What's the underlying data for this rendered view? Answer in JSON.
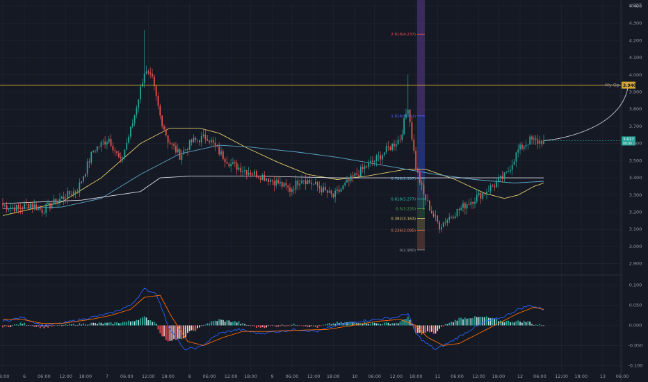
{
  "chart_data": {
    "type": "candlestick",
    "currency_label": "USDT",
    "colors": {
      "up": "#26a69a",
      "down": "#ef5350",
      "bg": "#151924",
      "grid": "#232733"
    },
    "main_pane": {
      "ylim": [
        2.85,
        4.42
      ],
      "y_ticks": [
        "4.400",
        "4.300",
        "4.200",
        "4.100",
        "4.000",
        "3.900",
        "3.800",
        "3.700",
        "3.600",
        "3.500",
        "3.400",
        "3.300",
        "3.200",
        "3.100",
        "3.000",
        "2.900"
      ],
      "y_tick_values": [
        4.4,
        4.3,
        4.2,
        4.1,
        4.0,
        3.9,
        3.8,
        3.7,
        3.6,
        3.5,
        3.4,
        3.3,
        3.2,
        3.1,
        3.0,
        2.9
      ],
      "candle_count": 276,
      "projection_end_index": 318,
      "key_closes": [
        [
          0,
          3.24
        ],
        [
          8,
          3.22
        ],
        [
          14,
          3.25
        ],
        [
          20,
          3.21
        ],
        [
          28,
          3.27
        ],
        [
          38,
          3.33
        ],
        [
          46,
          3.56
        ],
        [
          54,
          3.63
        ],
        [
          60,
          3.49
        ],
        [
          66,
          3.72
        ],
        [
          72,
          4.02
        ],
        [
          76,
          3.97
        ],
        [
          80,
          3.76
        ],
        [
          84,
          3.62
        ],
        [
          90,
          3.53
        ],
        [
          96,
          3.61
        ],
        [
          104,
          3.64
        ],
        [
          110,
          3.55
        ],
        [
          116,
          3.48
        ],
        [
          124,
          3.44
        ],
        [
          132,
          3.41
        ],
        [
          140,
          3.37
        ],
        [
          146,
          3.33
        ],
        [
          152,
          3.4
        ],
        [
          160,
          3.35
        ],
        [
          168,
          3.29
        ],
        [
          176,
          3.38
        ],
        [
          184,
          3.46
        ],
        [
          190,
          3.51
        ],
        [
          196,
          3.57
        ],
        [
          202,
          3.63
        ],
        [
          206,
          3.82
        ],
        [
          210,
          3.46
        ],
        [
          214,
          3.3
        ],
        [
          218,
          3.2
        ],
        [
          222,
          3.12
        ],
        [
          228,
          3.18
        ],
        [
          236,
          3.25
        ],
        [
          244,
          3.31
        ],
        [
          250,
          3.36
        ],
        [
          256,
          3.42
        ],
        [
          262,
          3.56
        ],
        [
          268,
          3.62
        ],
        [
          272,
          3.61
        ],
        [
          275,
          3.617
        ]
      ],
      "ma_series": [
        {
          "color": "#e6cf6b",
          "points": [
            [
              0,
              3.18
            ],
            [
              30,
              3.26
            ],
            [
              50,
              3.4
            ],
            [
              70,
              3.6
            ],
            [
              85,
              3.69
            ],
            [
              100,
              3.69
            ],
            [
              110,
              3.66
            ],
            [
              125,
              3.57
            ],
            [
              140,
              3.49
            ],
            [
              155,
              3.42
            ],
            [
              170,
              3.39
            ],
            [
              185,
              3.41
            ],
            [
              205,
              3.45
            ],
            [
              215,
              3.45
            ],
            [
              230,
              3.39
            ],
            [
              245,
              3.31
            ],
            [
              255,
              3.28
            ],
            [
              262,
              3.3
            ],
            [
              270,
              3.35
            ],
            [
              275,
              3.37
            ]
          ]
        },
        {
          "color": "#5ea8c9",
          "points": [
            [
              0,
              3.22
            ],
            [
              30,
              3.23
            ],
            [
              50,
              3.28
            ],
            [
              70,
              3.42
            ],
            [
              90,
              3.54
            ],
            [
              110,
              3.59
            ],
            [
              125,
              3.58
            ],
            [
              150,
              3.55
            ],
            [
              170,
              3.52
            ],
            [
              190,
              3.48
            ],
            [
              205,
              3.45
            ],
            [
              220,
              3.42
            ],
            [
              240,
              3.39
            ],
            [
              260,
              3.37
            ],
            [
              275,
              3.38
            ]
          ]
        },
        {
          "color": "#d9d9e3",
          "points": [
            [
              0,
              3.25
            ],
            [
              40,
              3.27
            ],
            [
              70,
              3.32
            ],
            [
              80,
              3.4
            ],
            [
              95,
              3.41
            ],
            [
              130,
              3.41
            ],
            [
              170,
              3.4
            ],
            [
              200,
              3.4
            ],
            [
              230,
              3.4
            ],
            [
              260,
              3.4
            ],
            [
              275,
              3.4
            ]
          ]
        }
      ],
      "horizontal_line": {
        "value": 3.94,
        "label": "My Op",
        "color": "#d4a437"
      },
      "last_price": {
        "value": 3.617,
        "label": "3.617",
        "sublabel": "00:40"
      },
      "fib_levels": [
        {
          "ratio": "2.618(4.237)",
          "value": 4.237,
          "color": "#ef5350"
        },
        {
          "ratio": "1.618(3.761)",
          "value": 3.761,
          "color": "#5566ff"
        },
        {
          "ratio": "0.786(3.397)",
          "value": 3.397,
          "color": "#4aa3df"
        },
        {
          "ratio": "0.618(3.277)",
          "value": 3.277,
          "color": "#2ec4b6"
        },
        {
          "ratio": "0.5(3.220)",
          "value": 3.22,
          "color": "#4caf50"
        },
        {
          "ratio": "0.382(3.163)",
          "value": 3.163,
          "color": "#e6cf6b"
        },
        {
          "ratio": "0.236(3.095)",
          "value": 3.095,
          "color": "#ef8354"
        },
        {
          "ratio": "0(2.980)",
          "value": 2.98,
          "color": "#9598a1"
        }
      ]
    },
    "indicator_pane": {
      "ylim": [
        -0.115,
        0.115
      ],
      "y_ticks": [
        "0.100",
        "0.050",
        "0.000",
        "-0.050",
        "-0.100"
      ],
      "y_tick_values": [
        0.1,
        0.05,
        0.0,
        -0.05,
        -0.1
      ],
      "macd_line": [
        [
          0,
          0.01
        ],
        [
          10,
          0.02
        ],
        [
          20,
          0.0
        ],
        [
          30,
          0.005
        ],
        [
          45,
          0.02
        ],
        [
          55,
          0.03
        ],
        [
          65,
          0.05
        ],
        [
          72,
          0.09
        ],
        [
          78,
          0.08
        ],
        [
          84,
          0.0
        ],
        [
          92,
          -0.06
        ],
        [
          100,
          -0.055
        ],
        [
          110,
          -0.02
        ],
        [
          120,
          -0.01
        ],
        [
          130,
          -0.02
        ],
        [
          140,
          -0.015
        ],
        [
          150,
          -0.01
        ],
        [
          160,
          -0.015
        ],
        [
          170,
          0.0
        ],
        [
          180,
          0.01
        ],
        [
          190,
          0.015
        ],
        [
          200,
          0.02
        ],
        [
          206,
          0.03
        ],
        [
          210,
          -0.02
        ],
        [
          214,
          -0.04
        ],
        [
          220,
          -0.06
        ],
        [
          228,
          -0.04
        ],
        [
          238,
          -0.01
        ],
        [
          246,
          0.01
        ],
        [
          254,
          0.02
        ],
        [
          262,
          0.04
        ],
        [
          268,
          0.05
        ],
        [
          275,
          0.04
        ]
      ],
      "signal_line": [
        [
          0,
          0.015
        ],
        [
          10,
          0.015
        ],
        [
          20,
          0.005
        ],
        [
          30,
          0.005
        ],
        [
          45,
          0.015
        ],
        [
          55,
          0.025
        ],
        [
          65,
          0.04
        ],
        [
          72,
          0.07
        ],
        [
          80,
          0.075
        ],
        [
          86,
          0.02
        ],
        [
          94,
          -0.04
        ],
        [
          102,
          -0.05
        ],
        [
          112,
          -0.03
        ],
        [
          122,
          -0.015
        ],
        [
          135,
          -0.015
        ],
        [
          150,
          -0.012
        ],
        [
          165,
          -0.01
        ],
        [
          178,
          0.0
        ],
        [
          190,
          0.01
        ],
        [
          202,
          0.015
        ],
        [
          210,
          0.0
        ],
        [
          216,
          -0.03
        ],
        [
          224,
          -0.05
        ],
        [
          232,
          -0.045
        ],
        [
          242,
          -0.02
        ],
        [
          252,
          0.005
        ],
        [
          262,
          0.03
        ],
        [
          270,
          0.045
        ],
        [
          275,
          0.04
        ]
      ]
    },
    "x_axis": {
      "ticks": [
        {
          "index": 0,
          "label": "18:00"
        },
        {
          "index": 11,
          "label": "6"
        },
        {
          "index": 21,
          "label": "06:00"
        },
        {
          "index": 32,
          "label": "12:00"
        },
        {
          "index": 42,
          "label": "18:00"
        },
        {
          "index": 53,
          "label": "7"
        },
        {
          "index": 63,
          "label": "06:00"
        },
        {
          "index": 74,
          "label": "12:00"
        },
        {
          "index": 84,
          "label": "18:00"
        },
        {
          "index": 95,
          "label": "8"
        },
        {
          "index": 105,
          "label": "06:00"
        },
        {
          "index": 116,
          "label": "12:00"
        },
        {
          "index": 126,
          "label": "18:00"
        },
        {
          "index": 137,
          "label": "9"
        },
        {
          "index": 147,
          "label": "06:00"
        },
        {
          "index": 158,
          "label": "12:00"
        },
        {
          "index": 168,
          "label": "18:00"
        },
        {
          "index": 179,
          "label": "10"
        },
        {
          "index": 189,
          "label": "06:00"
        },
        {
          "index": 200,
          "label": "12:00"
        },
        {
          "index": 210,
          "label": "18:00"
        },
        {
          "index": 221,
          "label": "11"
        },
        {
          "index": 231,
          "label": "06:00"
        },
        {
          "index": 242,
          "label": "12:00"
        },
        {
          "index": 252,
          "label": "18:00"
        },
        {
          "index": 263,
          "label": "12"
        },
        {
          "index": 273,
          "label": "06:00"
        },
        {
          "index": 284,
          "label": "12:00"
        },
        {
          "index": 294,
          "label": "18:00"
        },
        {
          "index": 305,
          "label": "13"
        },
        {
          "index": 315,
          "label": "06:00"
        }
      ]
    }
  }
}
